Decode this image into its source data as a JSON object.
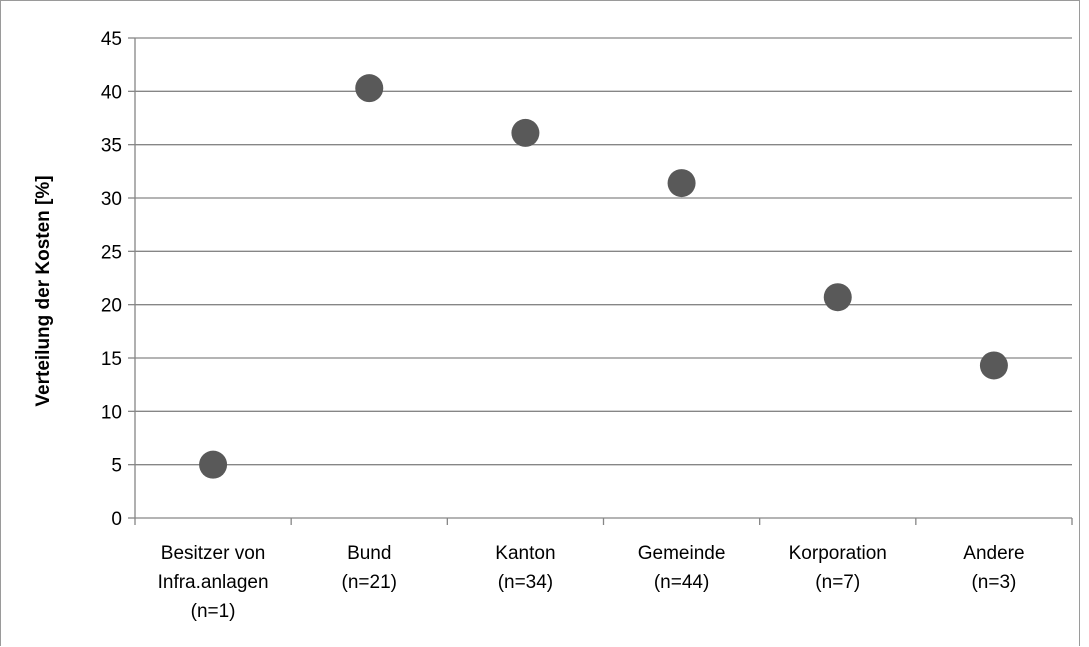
{
  "chart_data": {
    "type": "scatter",
    "title": "",
    "xlabel": "",
    "ylabel": "Verteilung der Kosten [%]",
    "ylim": [
      0,
      45
    ],
    "y_ticks": [
      0,
      5,
      10,
      15,
      20,
      25,
      30,
      35,
      40,
      45
    ],
    "grid": true,
    "legend": "none",
    "categories": [
      [
        "Besitzer von",
        "Infra.anlagen",
        "(n=1)"
      ],
      [
        "Bund",
        "(n=21)"
      ],
      [
        "Kanton",
        "(n=34)"
      ],
      [
        "Gemeinde",
        "(n=44)"
      ],
      [
        "Korporation",
        "(n=7)"
      ],
      [
        "Andere",
        "(n=3)"
      ]
    ],
    "values": [
      5.0,
      40.3,
      36.1,
      31.4,
      20.7,
      14.3
    ],
    "marker_color": "#595959",
    "grid_color": "#868686"
  }
}
